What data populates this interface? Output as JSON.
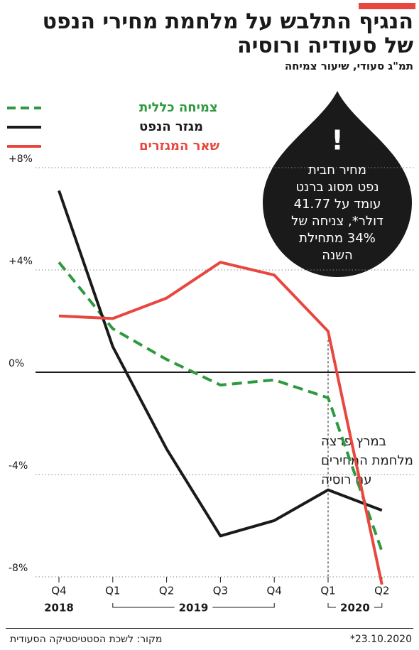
{
  "chart_data": {
    "type": "line",
    "title": [
      "הנגיף התלבש על מלחמת מחירי הנפט",
      "של סעודיה ורוסיה"
    ],
    "subtitle": "תמ\"ג סעודי, שיעור צמיחה",
    "categories": [
      "Q4",
      "Q1",
      "Q2",
      "Q3",
      "Q4",
      "Q1",
      "Q2"
    ],
    "year_labels": [
      "2018",
      "2019",
      "2020"
    ],
    "series": [
      {
        "name": "צמיחה כללית",
        "color": "#2e9a3f",
        "dashed": true,
        "values": [
          4.3,
          1.7,
          0.5,
          -0.5,
          -0.3,
          -1.0,
          -7.0
        ]
      },
      {
        "name": "מגזר הנפט",
        "color": "#1a1a1a",
        "dashed": false,
        "values": [
          7.1,
          1.0,
          -3.0,
          -6.4,
          -5.8,
          -4.6,
          -5.4
        ]
      },
      {
        "name": "שאר המגזרים",
        "color": "#e8473f",
        "dashed": false,
        "values": [
          2.2,
          2.1,
          2.9,
          4.3,
          3.8,
          1.6,
          -8.3
        ]
      }
    ],
    "ylim": [
      -8.5,
      8.5
    ],
    "yticks": [
      {
        "value": 8,
        "label": "+8%"
      },
      {
        "value": 4,
        "label": "+4%"
      },
      {
        "value": 0,
        "label": "0%"
      },
      {
        "value": -4,
        "label": "-4%"
      },
      {
        "value": -8,
        "label": "-8%"
      }
    ],
    "grid": true,
    "legend": "top-left",
    "drop_annotation": {
      "mark": "!",
      "lines": [
        "מחיר חבית",
        "נפט מסוג ברנט",
        "עומד על 41.77",
        "דולר*, צניחה של",
        "34% מתחילת",
        "השנה"
      ]
    },
    "war_annotation": [
      "במרץ פרצה",
      "מלחמת המחירים",
      "עם רוסיה"
    ],
    "source": "מקור: לשכת הסטטיסטיקה הסעודית",
    "date": "23.10.2020*"
  }
}
